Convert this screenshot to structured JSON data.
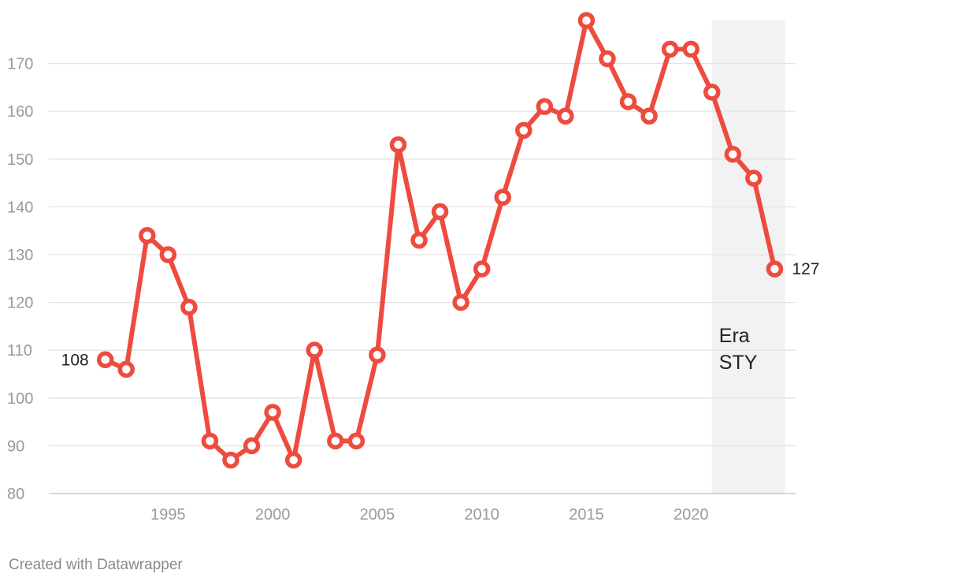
{
  "chart_data": {
    "type": "line",
    "title": "",
    "xlabel": "",
    "ylabel": "",
    "series": [
      {
        "color": "#ee4b3f",
        "x": [
          1992,
          1993,
          1994,
          1995,
          1996,
          1997,
          1998,
          1999,
          2000,
          2001,
          2002,
          2003,
          2004,
          2005,
          2006,
          2007,
          2008,
          2009,
          2010,
          2011,
          2012,
          2013,
          2014,
          2015,
          2016,
          2017,
          2018,
          2019,
          2020,
          2021,
          2022,
          2023,
          2024
        ],
        "values": [
          108,
          106,
          134,
          130,
          119,
          91,
          87,
          90,
          97,
          87,
          110,
          91,
          91,
          109,
          153,
          133,
          139,
          120,
          127,
          142,
          156,
          161,
          159,
          179,
          171,
          162,
          159,
          173,
          173,
          164,
          151,
          146,
          127
        ]
      }
    ],
    "xlim": [
      1989.3,
      2025
    ],
    "ylim": [
      80,
      179
    ],
    "y_ticks": [
      80,
      90,
      100,
      110,
      120,
      130,
      140,
      150,
      160,
      170
    ],
    "x_ticks": [
      1995,
      2000,
      2005,
      2010,
      2015,
      2020
    ],
    "grid": "horizontal",
    "shaded_band": {
      "x_start": 2021,
      "x_end": 2024.5,
      "label_lines": [
        "Era",
        "STY"
      ],
      "color": "#f2f2f2"
    },
    "point_labels": [
      {
        "x": 1992,
        "value": 108,
        "text": "108",
        "side": "left"
      },
      {
        "x": 2024,
        "value": 127,
        "text": "127",
        "side": "right"
      }
    ]
  },
  "footer": {
    "credit": "Created with Datawrapper"
  }
}
